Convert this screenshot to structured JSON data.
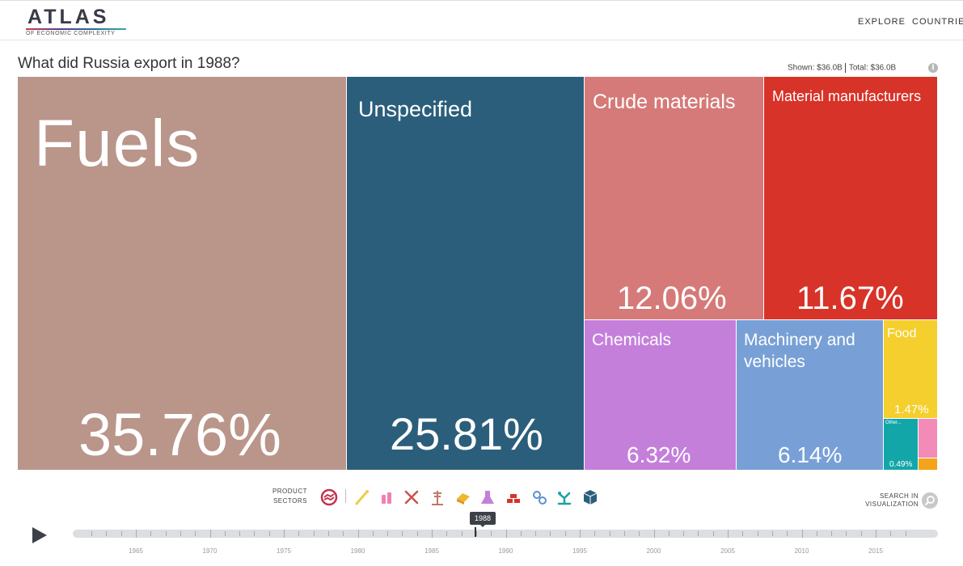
{
  "header": {
    "logo_main": "ATLAS",
    "logo_sub": "OF ECONOMIC COMPLEXITY",
    "nav": [
      "EXPLORE",
      "COUNTRIES"
    ]
  },
  "title": "What did Russia export in 1988?",
  "totals": {
    "shown_label": "Shown:",
    "shown_value": "$36.0B",
    "total_label": "Total:",
    "total_value": "$36.0B"
  },
  "treemap": {
    "fuels": {
      "label": "Fuels",
      "share": "35.76%",
      "color": "#ba958a"
    },
    "unspecified": {
      "label": "Unspecified",
      "share": "25.81%",
      "color": "#2b5e7b"
    },
    "crude": {
      "label": "Crude materials",
      "share": "12.06%",
      "color": "#d57a78"
    },
    "material_manufacturers": {
      "label": "Material manufacturers",
      "share": "11.67%",
      "color": "#d83328"
    },
    "chemicals": {
      "label": "Chemicals",
      "share": "6.32%",
      "color": "#c47fdb"
    },
    "machinery": {
      "label": "Machinery and vehicles",
      "share": "6.14%",
      "color": "#78a0d7"
    },
    "food": {
      "label": "Food",
      "share": "1.47%",
      "color": "#f5cf2e"
    },
    "other": {
      "label": "Other...",
      "share": "0.49%",
      "color": "#13a6a9"
    }
  },
  "controls": {
    "sectors_label": "PRODUCT SECTORS",
    "search_label": "SEARCH IN VISUALIZATION",
    "sector_icons": [
      "services-icon",
      "textiles-icon",
      "chemicals-icon",
      "stone-icon",
      "agriculture-icon",
      "minerals-icon",
      "chemicals-flask-icon",
      "metals-icon",
      "machinery-icon",
      "electronics-icon",
      "other-box-icon"
    ]
  },
  "timeline": {
    "selected_year": "1988",
    "start_year": 1962,
    "end_year": 2017,
    "year_labels": [
      "1965",
      "1970",
      "1975",
      "1980",
      "1985",
      "1990",
      "1995",
      "2000",
      "2005",
      "2010",
      "2015"
    ]
  }
}
